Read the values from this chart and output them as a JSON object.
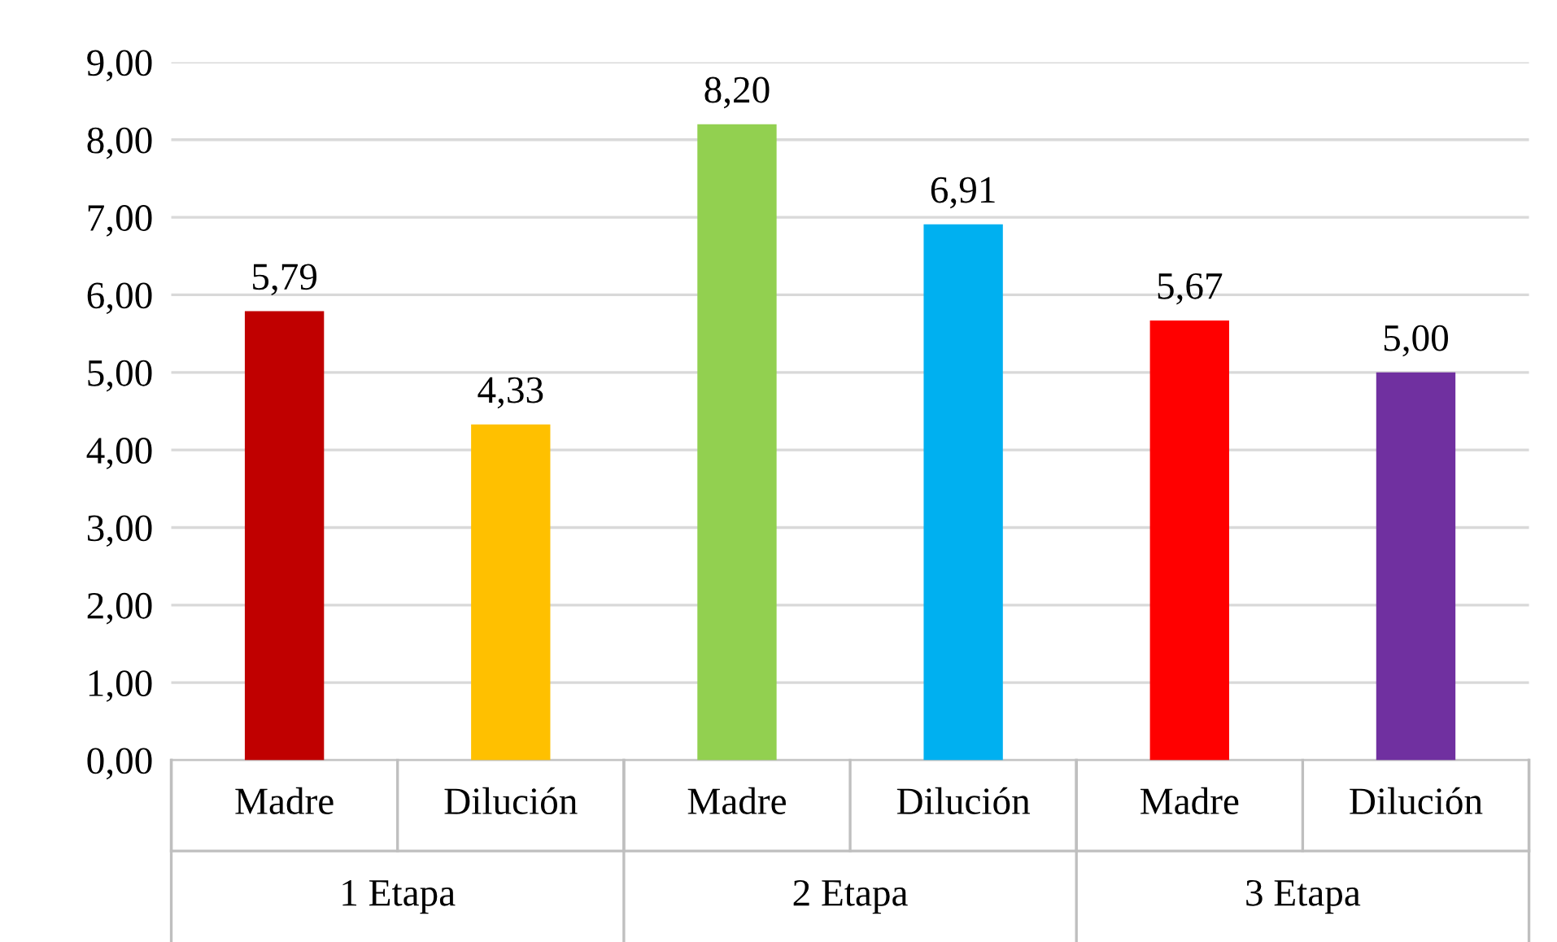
{
  "chart_data": {
    "type": "bar",
    "categories": [
      "Madre",
      "Dilución",
      "Madre",
      "Dilución",
      "Madre",
      "Dilución"
    ],
    "values": [
      5.79,
      4.33,
      8.2,
      6.91,
      5.67,
      5.0
    ],
    "colors": [
      "#c00000",
      "#ffc000",
      "#92d050",
      "#00b0f0",
      "#ff0000",
      "#7030a0"
    ],
    "value_labels": [
      "5,79",
      "4,33",
      "8,20",
      "6,91",
      "5,67",
      "5,00"
    ],
    "annotations": [
      "1 Etapa",
      "2 Etapa",
      "3 Etapa"
    ],
    "ylim": [
      0,
      9
    ],
    "yticks": [
      {
        "value": 0,
        "label": "0,00"
      },
      {
        "value": 1,
        "label": "1,00"
      },
      {
        "value": 2,
        "label": "2,00"
      },
      {
        "value": 3,
        "label": "3,00"
      },
      {
        "value": 4,
        "label": "4,00"
      },
      {
        "value": 5,
        "label": "5,00"
      },
      {
        "value": 6,
        "label": "6,00"
      },
      {
        "value": 7,
        "label": "7,00"
      },
      {
        "value": 8,
        "label": "8,00"
      },
      {
        "value": 9,
        "label": "9,00"
      }
    ],
    "grid": "y"
  }
}
